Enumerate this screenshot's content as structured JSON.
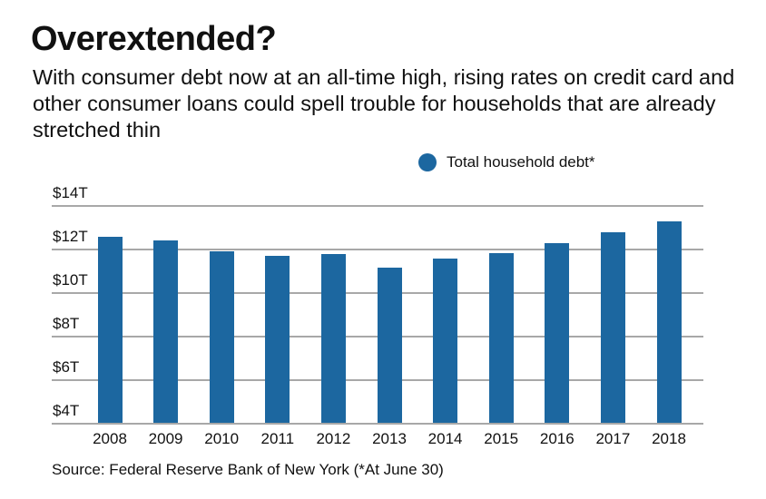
{
  "header": {
    "title": "Overextended?",
    "subtitle": "With consumer debt now at an all-time high, rising rates on credit card and other consumer loans could spell trouble for households that are already stretched thin"
  },
  "legend": {
    "label": "Total household debt*",
    "color": "#1c67a0"
  },
  "footer": {
    "source": "Source: Federal Reserve Bank of New York (*At June 30)"
  },
  "colors": {
    "bar": "#1c67a0",
    "gridline": "#a8a8a8"
  },
  "chart_data": {
    "type": "bar",
    "title": "Overextended?",
    "subtitle": "With consumer debt now at an all-time high, rising rates on credit card and other consumer loans could spell trouble for households that are already stretched thin",
    "xlabel": "",
    "ylabel": "",
    "categories": [
      "2008",
      "2009",
      "2010",
      "2011",
      "2012",
      "2013",
      "2014",
      "2015",
      "2016",
      "2017",
      "2018"
    ],
    "series": [
      {
        "name": "Total household debt*",
        "values": [
          12.6,
          12.4,
          11.9,
          11.7,
          11.8,
          11.15,
          11.6,
          11.85,
          12.3,
          12.8,
          13.3
        ]
      }
    ],
    "units": "trillions USD",
    "ylim": [
      4,
      14
    ],
    "yticks": [
      4,
      6,
      8,
      10,
      12,
      14
    ],
    "ytick_labels": [
      "$4T",
      "$6T",
      "$8T",
      "$10T",
      "$12T",
      "$14T"
    ],
    "grid": true,
    "legend_position": "top-right",
    "source": "Source: Federal Reserve Bank of New York (*At June 30)"
  }
}
